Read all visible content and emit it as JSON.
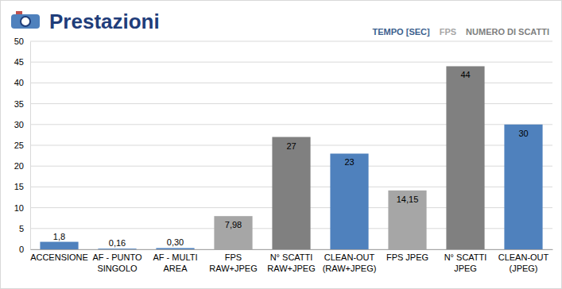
{
  "chart_data": {
    "type": "bar",
    "title": "Prestazioni",
    "categories": [
      "ACCENSIONE",
      "AF - PUNTO\nSINGOLO",
      "AF - MULTI\nAREA",
      "FPS\nRAW+JPEG",
      "N° SCATTI\nRAW+JPEG",
      "CLEAN-OUT\n(RAW+JPEG)",
      "FPS JPEG",
      "N° SCATTI\nJPEG",
      "CLEAN-OUT\n(JPEG)"
    ],
    "series": [
      {
        "name": "TEMPO [SEC]",
        "color": "#4f81bd",
        "values": [
          1.8,
          0.16,
          0.3,
          null,
          null,
          23,
          null,
          null,
          30
        ],
        "value_labels": [
          "1,8",
          "0,16",
          "0,30",
          null,
          null,
          "23",
          null,
          null,
          "30"
        ]
      },
      {
        "name": "FPS",
        "color": "#a6a6a6",
        "values": [
          null,
          null,
          null,
          7.98,
          null,
          null,
          14.15,
          null,
          null
        ],
        "value_labels": [
          null,
          null,
          null,
          "7,98",
          null,
          null,
          "14,15",
          null,
          null
        ]
      },
      {
        "name": "NUMERO DI SCATTI",
        "color": "#808080",
        "values": [
          null,
          null,
          null,
          null,
          27,
          null,
          null,
          44,
          null
        ],
        "value_labels": [
          null,
          null,
          null,
          null,
          "27",
          null,
          null,
          "44",
          null
        ]
      }
    ],
    "ylim": [
      0,
      50
    ],
    "yticks": [
      0,
      5,
      10,
      15,
      20,
      25,
      30,
      35,
      40,
      45,
      50
    ],
    "grid": true,
    "stacked": true,
    "data_labels": true,
    "legend": "top-right"
  }
}
